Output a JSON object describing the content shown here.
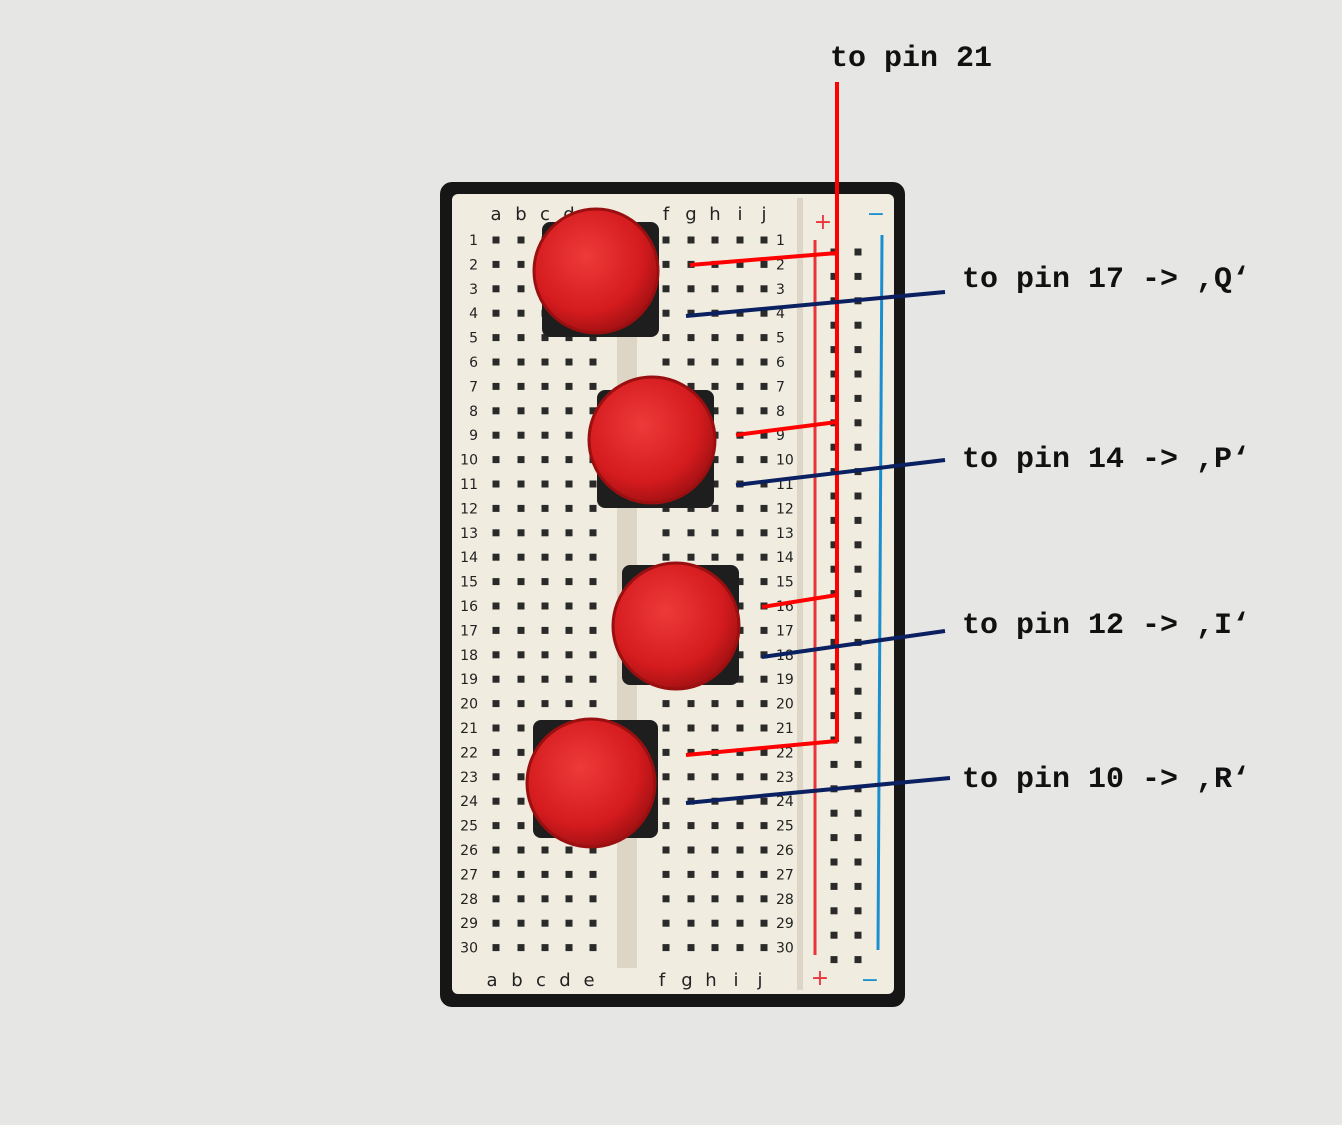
{
  "labels": {
    "top": "to pin 21",
    "q": "to pin 17 -> ,Q‘",
    "p": "to pin 14 -> ,P‘",
    "i": "to pin 12 -> ,I‘",
    "r": "to pin 10 -> ,R‘"
  },
  "breadboard": {
    "cols_left": [
      "a",
      "b",
      "c",
      "d",
      "e"
    ],
    "cols_right": [
      "f",
      "g",
      "h",
      "i",
      "j"
    ],
    "rows": 30,
    "rail_plus": "+",
    "rail_minus": "−"
  },
  "colors": {
    "background": "#e6e6e4",
    "board": "#f1ece0",
    "frame": "#141414",
    "button_cap": "#d91c1f",
    "button_base": "#1e1e1e",
    "wire_vcc": "#ff0000",
    "wire_signal": "#0a2060",
    "rail_plus": "#e8343a",
    "rail_minus": "#1a8fd0"
  }
}
